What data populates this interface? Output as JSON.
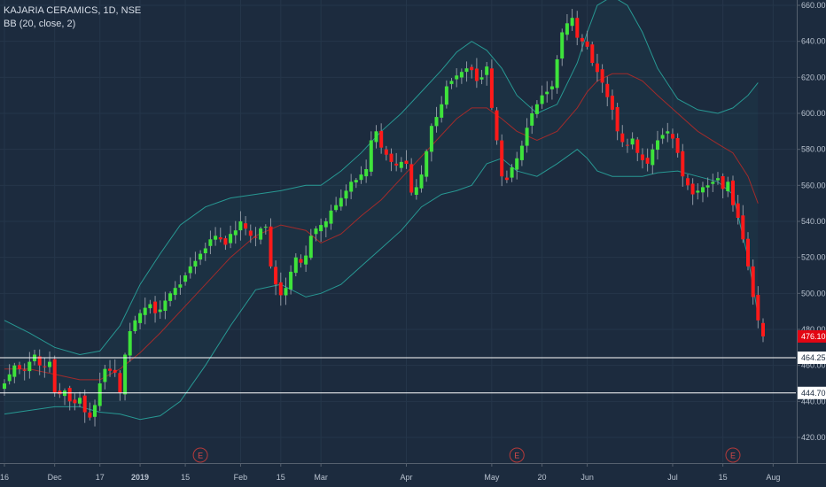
{
  "legend": {
    "title": "KAJARIA CERAMICS, 1D, NSE",
    "indicator": "BB (20, close, 2)"
  },
  "colors": {
    "background": "#1c2b3e",
    "up": "#3ee33b",
    "down": "#ff1a1a",
    "wick": "#8d96a2",
    "band": "#2bb3a7",
    "basis": "#a12b2b",
    "hline": "#ffffff",
    "grid": "#25364a",
    "lastPriceBg": "#e30613"
  },
  "chart_data": {
    "type": "candlestick",
    "title": "KAJARIA CERAMICS, 1D, NSE",
    "indicator": "BB (20, close, 2)",
    "ylim": [
      407,
      664
    ],
    "y_ticks": [
      420,
      440,
      460,
      480,
      500,
      520,
      540,
      560,
      580,
      600,
      620,
      640,
      660
    ],
    "x_ticks": [
      {
        "label": "16",
        "i": 0
      },
      {
        "label": "Dec",
        "i": 10
      },
      {
        "label": "17",
        "i": 19
      },
      {
        "label": "2019",
        "i": 27
      },
      {
        "label": "15",
        "i": 36
      },
      {
        "label": "Feb",
        "i": 47
      },
      {
        "label": "15",
        "i": 55
      },
      {
        "label": "Mar",
        "i": 63
      },
      {
        "label": "Apr",
        "i": 80
      },
      {
        "label": "May",
        "i": 97
      },
      {
        "label": "20",
        "i": 107
      },
      {
        "label": "Jun",
        "i": 116
      },
      {
        "label": "Jul",
        "i": 133
      },
      {
        "label": "15",
        "i": 143
      },
      {
        "label": "Aug",
        "i": 153
      }
    ],
    "x_extent": [
      -0.5,
      156
    ],
    "earnings_markers": [
      {
        "label": "E",
        "i": 39
      },
      {
        "label": "E",
        "i": 102
      },
      {
        "label": "E",
        "i": 145
      }
    ],
    "horizontal_levels": [
      464.25,
      444.7
    ],
    "last_price": 476.1,
    "closes": [
      450,
      455,
      460,
      458,
      457,
      462,
      466,
      460,
      459,
      462,
      445,
      444,
      446,
      440,
      439,
      442,
      434,
      431,
      438,
      450,
      458,
      457,
      456,
      445,
      466,
      479,
      485,
      489,
      492,
      494,
      489,
      491,
      496,
      500,
      503,
      505,
      510,
      515,
      518,
      522,
      525,
      530,
      532,
      530,
      527,
      533,
      535,
      540,
      536,
      532,
      531,
      536,
      537,
      515,
      505,
      499,
      503,
      512,
      520,
      517,
      521,
      532,
      536,
      538,
      540,
      546,
      549,
      553,
      557,
      562,
      563,
      566,
      569,
      585,
      590,
      581,
      577,
      573,
      571,
      573,
      572,
      556,
      559,
      566,
      579,
      593,
      598,
      605,
      615,
      618,
      621,
      623,
      625,
      624,
      618,
      620,
      626,
      603,
      585,
      565,
      563,
      570,
      575,
      582,
      592,
      600,
      605,
      610,
      612,
      615,
      630,
      645,
      650,
      653,
      642,
      640,
      637,
      628,
      623,
      617,
      609,
      602,
      590,
      584,
      582,
      586,
      578,
      574,
      572,
      580,
      585,
      588,
      590,
      586,
      578,
      565,
      560,
      555,
      557,
      559,
      560,
      562,
      564,
      558,
      562,
      549,
      542,
      530,
      515,
      498,
      485,
      476.1
    ],
    "bb_upper_pts": [
      [
        0,
        485
      ],
      [
        5,
        478
      ],
      [
        10,
        470
      ],
      [
        15,
        466
      ],
      [
        19,
        468
      ],
      [
        23,
        482
      ],
      [
        27,
        505
      ],
      [
        31,
        522
      ],
      [
        35,
        538
      ],
      [
        40,
        548
      ],
      [
        45,
        553
      ],
      [
        50,
        555
      ],
      [
        55,
        557
      ],
      [
        60,
        560
      ],
      [
        63,
        560
      ],
      [
        67,
        568
      ],
      [
        71,
        578
      ],
      [
        75,
        590
      ],
      [
        79,
        600
      ],
      [
        83,
        612
      ],
      [
        87,
        624
      ],
      [
        90,
        634
      ],
      [
        93,
        640
      ],
      [
        96,
        635
      ],
      [
        99,
        625
      ],
      [
        102,
        610
      ],
      [
        106,
        600
      ],
      [
        110,
        605
      ],
      [
        114,
        628
      ],
      [
        116,
        645
      ],
      [
        118,
        660
      ],
      [
        121,
        665
      ],
      [
        124,
        660
      ],
      [
        127,
        645
      ],
      [
        130,
        625
      ],
      [
        134,
        608
      ],
      [
        138,
        602
      ],
      [
        142,
        600
      ],
      [
        145,
        603
      ],
      [
        148,
        610
      ],
      [
        150,
        617
      ]
    ],
    "bb_basis_pts": [
      [
        0,
        458
      ],
      [
        5,
        458
      ],
      [
        10,
        455
      ],
      [
        15,
        452
      ],
      [
        19,
        452
      ],
      [
        23,
        458
      ],
      [
        27,
        467
      ],
      [
        31,
        478
      ],
      [
        35,
        490
      ],
      [
        40,
        505
      ],
      [
        45,
        520
      ],
      [
        50,
        532
      ],
      [
        55,
        538
      ],
      [
        60,
        535
      ],
      [
        63,
        528
      ],
      [
        67,
        533
      ],
      [
        71,
        543
      ],
      [
        75,
        552
      ],
      [
        79,
        564
      ],
      [
        83,
        576
      ],
      [
        87,
        588
      ],
      [
        90,
        597
      ],
      [
        93,
        603
      ],
      [
        96,
        603
      ],
      [
        99,
        597
      ],
      [
        102,
        590
      ],
      [
        106,
        585
      ],
      [
        110,
        590
      ],
      [
        114,
        603
      ],
      [
        116,
        612
      ],
      [
        118,
        618
      ],
      [
        121,
        622
      ],
      [
        124,
        622
      ],
      [
        127,
        618
      ],
      [
        130,
        610
      ],
      [
        134,
        600
      ],
      [
        138,
        590
      ],
      [
        142,
        583
      ],
      [
        145,
        578
      ],
      [
        148,
        565
      ],
      [
        150,
        550
      ]
    ],
    "bb_lower_pts": [
      [
        0,
        433
      ],
      [
        5,
        435
      ],
      [
        10,
        437
      ],
      [
        15,
        437
      ],
      [
        19,
        434
      ],
      [
        23,
        433
      ],
      [
        27,
        430
      ],
      [
        31,
        432
      ],
      [
        35,
        440
      ],
      [
        40,
        460
      ],
      [
        45,
        482
      ],
      [
        50,
        502
      ],
      [
        55,
        505
      ],
      [
        60,
        498
      ],
      [
        63,
        500
      ],
      [
        67,
        505
      ],
      [
        71,
        515
      ],
      [
        75,
        525
      ],
      [
        79,
        535
      ],
      [
        83,
        548
      ],
      [
        87,
        555
      ],
      [
        90,
        557
      ],
      [
        93,
        560
      ],
      [
        96,
        572
      ],
      [
        99,
        575
      ],
      [
        102,
        568
      ],
      [
        106,
        565
      ],
      [
        110,
        572
      ],
      [
        114,
        580
      ],
      [
        116,
        575
      ],
      [
        118,
        568
      ],
      [
        121,
        565
      ],
      [
        124,
        565
      ],
      [
        127,
        565
      ],
      [
        130,
        567
      ],
      [
        134,
        568
      ],
      [
        138,
        565
      ],
      [
        142,
        562
      ],
      [
        145,
        555
      ],
      [
        148,
        520
      ],
      [
        150,
        488
      ]
    ]
  }
}
